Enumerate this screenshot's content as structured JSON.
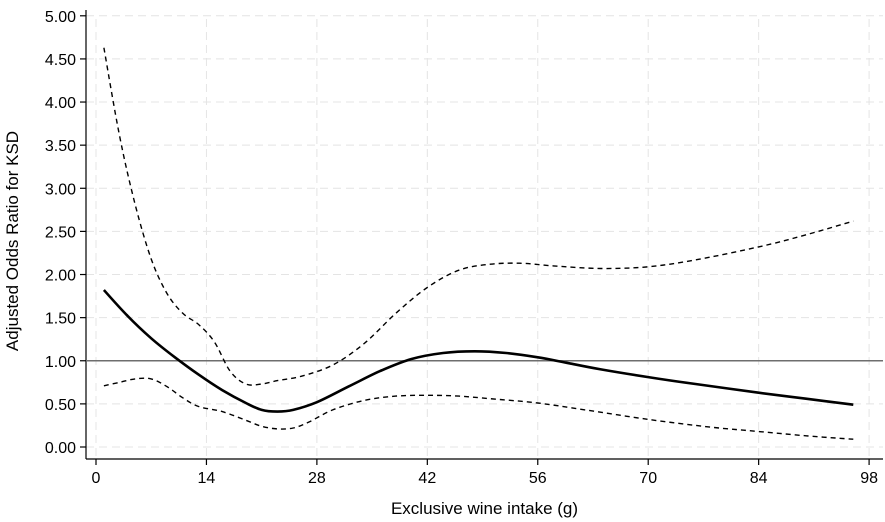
{
  "chart_data": {
    "type": "line",
    "xlabel": "Exclusive wine intake (g)",
    "ylabel": "Adjusted Odds Ratio for KSD",
    "xlim": [
      0,
      98
    ],
    "ylim": [
      0,
      5
    ],
    "x_ticks": [
      0,
      14,
      28,
      42,
      56,
      70,
      84,
      98
    ],
    "x_tick_labels": [
      "0",
      "14",
      "28",
      "42",
      "56",
      "70",
      "84",
      "98"
    ],
    "y_ticks": [
      0,
      0.5,
      1,
      1.5,
      2,
      2.5,
      3,
      3.5,
      4,
      4.5,
      5
    ],
    "y_tick_labels": [
      "0.00",
      "0.50",
      "1.00",
      "1.50",
      "2.00",
      "2.50",
      "3.00",
      "3.50",
      "4.00",
      "4.50",
      "5.00"
    ],
    "grid": true,
    "reference_line": {
      "y": 1.0
    },
    "series": [
      {
        "style": "solid",
        "x": [
          1,
          4,
          7,
          10,
          13,
          16,
          19,
          21,
          23,
          25,
          28,
          32,
          36,
          40,
          44,
          48,
          52,
          56,
          60,
          64,
          70,
          76,
          84,
          90,
          96
        ],
        "y": [
          1.82,
          1.52,
          1.26,
          1.04,
          0.84,
          0.66,
          0.51,
          0.43,
          0.41,
          0.43,
          0.52,
          0.7,
          0.88,
          1.02,
          1.09,
          1.11,
          1.09,
          1.04,
          0.97,
          0.9,
          0.81,
          0.73,
          0.63,
          0.56,
          0.49
        ]
      },
      {
        "style": "dashed",
        "x": [
          1,
          3,
          5,
          7,
          9,
          11,
          13,
          15,
          17,
          19,
          21,
          23,
          26,
          30,
          34,
          38,
          42,
          46,
          50,
          54,
          58,
          64,
          70,
          76,
          84,
          90,
          96
        ],
        "y": [
          4.63,
          3.6,
          2.8,
          2.18,
          1.78,
          1.55,
          1.42,
          1.22,
          0.88,
          0.73,
          0.73,
          0.77,
          0.82,
          0.95,
          1.2,
          1.55,
          1.85,
          2.05,
          2.12,
          2.13,
          2.1,
          2.07,
          2.09,
          2.17,
          2.32,
          2.46,
          2.62
        ]
      },
      {
        "style": "dashed",
        "x": [
          1,
          3,
          5,
          7,
          9,
          11,
          13,
          16,
          19,
          21,
          23,
          25,
          27,
          30,
          34,
          38,
          42,
          46,
          50,
          56,
          62,
          70,
          78,
          84,
          90,
          96
        ],
        "y": [
          0.71,
          0.75,
          0.79,
          0.79,
          0.7,
          0.57,
          0.47,
          0.41,
          0.31,
          0.24,
          0.21,
          0.22,
          0.29,
          0.43,
          0.54,
          0.59,
          0.6,
          0.59,
          0.56,
          0.51,
          0.43,
          0.32,
          0.23,
          0.18,
          0.13,
          0.09
        ]
      }
    ]
  }
}
